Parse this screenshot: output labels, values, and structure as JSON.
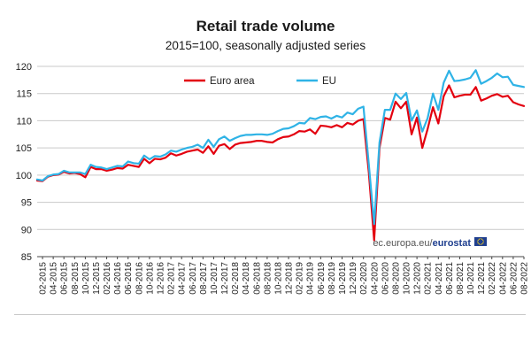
{
  "colors": {
    "euro_area": "#e3000f",
    "eu": "#2fb3e6",
    "grid": "#c9c9c9",
    "axis": "#444444"
  },
  "chart_data": {
    "type": "line",
    "title": "Retail trade volume",
    "subtitle": "2015=100, seasonally adjusted series",
    "ylim": [
      85,
      120
    ],
    "yticks": [
      85,
      90,
      95,
      100,
      105,
      110,
      115,
      120
    ],
    "grid": "horizontal",
    "legend": "top-left",
    "source": {
      "text": "ec.europa.eu/",
      "brand": "eurostat"
    },
    "x_tick_labels": [
      "02-2015",
      "04-2015",
      "06-2015",
      "08-2015",
      "10-2015",
      "12-2015",
      "02-2016",
      "04-2016",
      "06-2016",
      "08-2016",
      "10-2016",
      "12-2016",
      "02-2017",
      "04-2017",
      "06-2017",
      "08-2017",
      "10-2017",
      "12-2017",
      "02-2018",
      "04-2018",
      "06-2018",
      "08-2018",
      "10-2018",
      "12-2018",
      "02-2019",
      "04-2019",
      "06-2019",
      "08-2019",
      "10-2019",
      "12-2019",
      "02-2020",
      "04-2020",
      "06-2020",
      "08-2020",
      "10-2020",
      "12-2020",
      "02-2021",
      "04-2021",
      "06-2021",
      "08-2021",
      "10-2021",
      "12-2021",
      "02-2022",
      "04-2022",
      "06-2022",
      "08-2022"
    ],
    "x": [
      "01-2015",
      "02-2015",
      "03-2015",
      "04-2015",
      "05-2015",
      "06-2015",
      "07-2015",
      "08-2015",
      "09-2015",
      "10-2015",
      "11-2015",
      "12-2015",
      "01-2016",
      "02-2016",
      "03-2016",
      "04-2016",
      "05-2016",
      "06-2016",
      "07-2016",
      "08-2016",
      "09-2016",
      "10-2016",
      "11-2016",
      "12-2016",
      "01-2017",
      "02-2017",
      "03-2017",
      "04-2017",
      "05-2017",
      "06-2017",
      "07-2017",
      "08-2017",
      "09-2017",
      "10-2017",
      "11-2017",
      "12-2017",
      "01-2018",
      "02-2018",
      "03-2018",
      "04-2018",
      "05-2018",
      "06-2018",
      "07-2018",
      "08-2018",
      "09-2018",
      "10-2018",
      "11-2018",
      "12-2018",
      "01-2019",
      "02-2019",
      "03-2019",
      "04-2019",
      "05-2019",
      "06-2019",
      "07-2019",
      "08-2019",
      "09-2019",
      "10-2019",
      "11-2019",
      "12-2019",
      "01-2020",
      "02-2020",
      "03-2020",
      "04-2020",
      "05-2020",
      "06-2020",
      "07-2020",
      "08-2020",
      "09-2020",
      "10-2020",
      "11-2020",
      "12-2020",
      "01-2021",
      "02-2021",
      "03-2021",
      "04-2021",
      "05-2021",
      "06-2021",
      "07-2021",
      "08-2021",
      "09-2021",
      "10-2021",
      "11-2021",
      "12-2021",
      "01-2022",
      "02-2022",
      "03-2022",
      "04-2022",
      "05-2022",
      "06-2022",
      "07-2022",
      "08-2022"
    ],
    "series": [
      {
        "name": "Euro area",
        "color": "#e3000f",
        "values": [
          99.0,
          98.9,
          99.7,
          100.0,
          100.1,
          100.6,
          100.3,
          100.4,
          100.2,
          99.6,
          101.5,
          101.1,
          101.1,
          100.8,
          101.0,
          101.3,
          101.2,
          101.9,
          101.7,
          101.5,
          103.0,
          102.2,
          103.0,
          102.9,
          103.2,
          104.0,
          103.6,
          103.9,
          104.3,
          104.5,
          104.7,
          104.1,
          105.3,
          103.9,
          105.4,
          105.7,
          104.8,
          105.6,
          105.9,
          106.0,
          106.1,
          106.3,
          106.3,
          106.1,
          106.0,
          106.6,
          107.0,
          107.1,
          107.5,
          108.1,
          108.0,
          108.4,
          107.6,
          109.1,
          109.0,
          108.8,
          109.2,
          108.8,
          109.6,
          109.3,
          110.0,
          110.3,
          100.5,
          88.0,
          105.0,
          110.5,
          110.2,
          113.5,
          112.3,
          113.5,
          107.5,
          110.6,
          105.0,
          108.5,
          112.5,
          109.5,
          114.5,
          116.5,
          114.3,
          114.6,
          114.8,
          114.8,
          116.2,
          113.7,
          114.1,
          114.6,
          114.9,
          114.4,
          114.6,
          113.4,
          113.0,
          112.7
        ]
      },
      {
        "name": "EU",
        "color": "#2fb3e6",
        "values": [
          99.2,
          99.0,
          99.8,
          100.1,
          100.2,
          100.8,
          100.5,
          100.5,
          100.5,
          100.2,
          101.9,
          101.5,
          101.4,
          101.1,
          101.4,
          101.7,
          101.6,
          102.5,
          102.2,
          102.1,
          103.6,
          102.9,
          103.5,
          103.4,
          103.8,
          104.5,
          104.3,
          104.7,
          105.0,
          105.2,
          105.6,
          105.0,
          106.5,
          105.2,
          106.6,
          107.1,
          106.3,
          106.8,
          107.2,
          107.4,
          107.4,
          107.5,
          107.5,
          107.4,
          107.6,
          108.1,
          108.5,
          108.6,
          109.0,
          109.6,
          109.5,
          110.5,
          110.3,
          110.7,
          110.8,
          110.4,
          110.9,
          110.6,
          111.5,
          111.2,
          112.2,
          112.6,
          102.0,
          91.0,
          106.0,
          112.0,
          112.0,
          115.0,
          114.0,
          115.1,
          110.0,
          111.9,
          108.0,
          110.5,
          115.0,
          112.0,
          117.0,
          119.2,
          117.3,
          117.4,
          117.6,
          117.9,
          119.3,
          116.8,
          117.3,
          117.9,
          118.7,
          118.0,
          118.1,
          116.6,
          116.4,
          116.2
        ]
      }
    ]
  }
}
